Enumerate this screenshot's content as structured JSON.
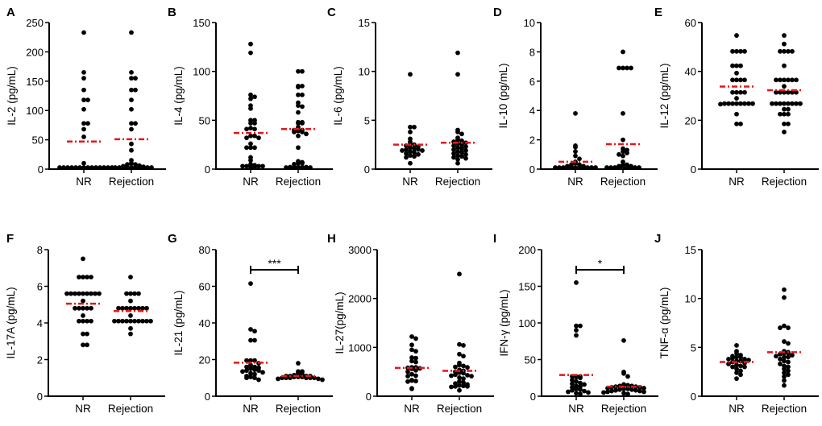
{
  "figure": {
    "colors": {
      "points": "#000000",
      "mean_line": "#e8141b",
      "axis": "#000000"
    }
  },
  "chart_data": [
    {
      "type": "scatter",
      "panel": "A",
      "ylabel": "IL-2 (pg/mL)",
      "categories": [
        "NR",
        "Rejection"
      ],
      "ylim": [
        0,
        250
      ],
      "yticks": [
        0,
        50,
        100,
        150,
        200,
        250
      ],
      "mean": [
        47,
        51
      ],
      "series": [
        {
          "name": "NR",
          "values": [
            233,
            165,
            155,
            135,
            118,
            118,
            102,
            78,
            78,
            68,
            55,
            10,
            2,
            1,
            1,
            0,
            0,
            0,
            0,
            0,
            0,
            0,
            0,
            0,
            0,
            0
          ]
        },
        {
          "name": "Rejection",
          "values": [
            233,
            165,
            155,
            155,
            135,
            135,
            118,
            102,
            78,
            78,
            68,
            43,
            32,
            15,
            10,
            8,
            8,
            6,
            5,
            4,
            3,
            2,
            2,
            1,
            1,
            0,
            0,
            0,
            0,
            0
          ]
        }
      ]
    },
    {
      "type": "scatter",
      "panel": "B",
      "ylabel": "IL-4 (pg/mL)",
      "categories": [
        "NR",
        "Rejection"
      ],
      "ylim": [
        0,
        150
      ],
      "yticks": [
        0,
        50,
        100,
        150
      ],
      "mean": [
        37,
        41
      ],
      "series": [
        {
          "name": "NR",
          "values": [
            128,
            119,
            76,
            74,
            72,
            65,
            62,
            50,
            50,
            47,
            47,
            42,
            41,
            41,
            34,
            34,
            32,
            32,
            26,
            22,
            22,
            22,
            12,
            9,
            5,
            4,
            3,
            3,
            3,
            3,
            2,
            1
          ]
        },
        {
          "name": "Rejection",
          "values": [
            100,
            100,
            85,
            85,
            84,
            76,
            76,
            68,
            65,
            64,
            58,
            48,
            48,
            47,
            47,
            43,
            40,
            40,
            39,
            38,
            38,
            36,
            34,
            22,
            8,
            7,
            6,
            6,
            5,
            2,
            2,
            2,
            2,
            2,
            1,
            0
          ]
        }
      ]
    },
    {
      "type": "scatter",
      "panel": "C",
      "ylabel": "IL-6 (pg/mL)",
      "categories": [
        "NR",
        "Rejection"
      ],
      "ylim": [
        0,
        15
      ],
      "yticks": [
        0,
        5,
        10,
        15
      ],
      "mean": [
        2.5,
        2.7
      ],
      "series": [
        {
          "name": "NR",
          "values": [
            9.7,
            4.3,
            4.3,
            3.8,
            3.1,
            2.8,
            2.6,
            2.5,
            2.4,
            2.3,
            2.2,
            2.1,
            2.0,
            2.0,
            1.9,
            1.9,
            1.8,
            1.7,
            1.6,
            1.5,
            1.4,
            1.3,
            1.2,
            0.6
          ]
        },
        {
          "name": "Rejection",
          "values": [
            11.9,
            9.7,
            4.0,
            3.8,
            3.6,
            3.2,
            3.0,
            2.9,
            2.8,
            2.7,
            2.6,
            2.5,
            2.4,
            2.3,
            2.2,
            2.1,
            2.0,
            1.9,
            1.8,
            1.7,
            1.6,
            1.5,
            1.4,
            1.3,
            1.2,
            1.1,
            1.0,
            0.6
          ]
        }
      ]
    },
    {
      "type": "scatter",
      "panel": "D",
      "ylabel": "IL-10 (pg/mL)",
      "categories": [
        "NR",
        "Rejection"
      ],
      "ylim": [
        0,
        10
      ],
      "yticks": [
        0,
        2,
        4,
        6,
        8,
        10
      ],
      "mean": [
        0.5,
        1.7
      ],
      "series": [
        {
          "name": "NR",
          "values": [
            3.8,
            1.6,
            1.5,
            1.2,
            0.9,
            0.7,
            0.5,
            0.4,
            0.3,
            0.3,
            0.2,
            0.2,
            0.1,
            0.1,
            0.1,
            0.0,
            0.0,
            0.0,
            0.0,
            0.0,
            0.0,
            0.0,
            0.0
          ]
        },
        {
          "name": "Rejection",
          "values": [
            8.0,
            6.9,
            6.9,
            6.9,
            6.9,
            3.8,
            2.0,
            1.4,
            1.3,
            1.2,
            1.1,
            1.0,
            0.9,
            0.5,
            0.3,
            0.3,
            0.2,
            0.2,
            0.1,
            0.1,
            0.0,
            0.0,
            0.0,
            0.0,
            0.0,
            0.0,
            0.0
          ]
        }
      ]
    },
    {
      "type": "scatter",
      "panel": "E",
      "ylabel": "IL-12 (pg/mL)",
      "categories": [
        "NR",
        "Rejection"
      ],
      "ylim": [
        0,
        60
      ],
      "yticks": [
        0,
        20,
        40,
        60
      ],
      "mean": [
        33.8,
        32.3
      ],
      "series": [
        {
          "name": "NR",
          "values": [
            54.7,
            48.2,
            48.2,
            48.2,
            48.2,
            42.3,
            42.3,
            42.3,
            39.3,
            36.5,
            36.5,
            36.5,
            36.5,
            31.4,
            31.4,
            31.4,
            31.4,
            29.0,
            26.8,
            26.8,
            26.8,
            26.8,
            26.8,
            26.8,
            26.8,
            26.8,
            26.6,
            22.5,
            18.5,
            18.5
          ]
        },
        {
          "name": "Rejection",
          "values": [
            54.7,
            51.2,
            48.2,
            48.2,
            48.2,
            48.2,
            42.3,
            36.5,
            36.5,
            36.5,
            36.5,
            36.5,
            36.5,
            33.9,
            31.4,
            31.4,
            31.4,
            31.4,
            31.4,
            31.4,
            26.8,
            26.8,
            26.8,
            26.8,
            26.8,
            26.8,
            26.8,
            26.8,
            24.5,
            24.5,
            22.5,
            22.5,
            22.5,
            18.5,
            18.5,
            15.2
          ]
        }
      ]
    },
    {
      "type": "scatter",
      "panel": "F",
      "ylabel": "IL-17A (pg/mL)",
      "categories": [
        "NR",
        "Rejection"
      ],
      "ylim": [
        0,
        8
      ],
      "yticks": [
        0,
        2,
        4,
        6,
        8
      ],
      "mean": [
        5.05,
        4.65
      ],
      "series": [
        {
          "name": "NR",
          "values": [
            7.5,
            6.5,
            6.5,
            6.5,
            6.5,
            5.6,
            5.6,
            5.6,
            5.6,
            5.6,
            5.6,
            5.6,
            5.6,
            5.6,
            5.2,
            4.8,
            4.8,
            4.8,
            4.8,
            4.8,
            4.4,
            4.1,
            4.1,
            4.1,
            4.1,
            3.4,
            3.4,
            2.8,
            2.8
          ]
        },
        {
          "name": "Rejection",
          "values": [
            6.5,
            5.6,
            5.6,
            5.6,
            5.6,
            5.2,
            4.8,
            4.8,
            4.8,
            4.8,
            4.8,
            4.8,
            4.8,
            4.8,
            4.4,
            4.1,
            4.1,
            4.1,
            4.1,
            4.1,
            4.1,
            4.1,
            4.1,
            4.1,
            4.1,
            3.7,
            3.4
          ]
        }
      ]
    },
    {
      "type": "scatter",
      "panel": "G",
      "ylabel": "IL-21 (pg/mL)",
      "categories": [
        "NR",
        "Rejection"
      ],
      "ylim": [
        0,
        80
      ],
      "yticks": [
        0,
        20,
        40,
        60,
        80
      ],
      "mean": [
        18.3,
        11.0
      ],
      "significance": "***",
      "series": [
        {
          "name": "NR",
          "values": [
            61.5,
            36.5,
            35.5,
            30.5,
            30.5,
            19.5,
            19.5,
            19.5,
            18,
            17,
            16,
            16,
            15.5,
            15,
            14.5,
            14,
            14,
            13.5,
            13,
            12.5,
            12,
            11,
            10.5,
            10,
            10,
            9
          ]
        },
        {
          "name": "Rejection",
          "values": [
            18,
            13.5,
            13.5,
            12.5,
            12,
            11.5,
            11,
            11,
            11,
            11,
            10.5,
            10.5,
            10.5,
            10,
            10,
            10,
            10,
            10,
            10,
            9.5,
            9.5,
            9
          ]
        }
      ]
    },
    {
      "type": "scatter",
      "panel": "H",
      "ylabel": "IL-27(pg/mL)",
      "categories": [
        "NR",
        "Rejection"
      ],
      "ylim": [
        0,
        3000
      ],
      "yticks": [
        0,
        1000,
        2000,
        3000
      ],
      "mean": [
        580,
        520
      ],
      "series": [
        {
          "name": "NR",
          "values": [
            1220,
            1180,
            1050,
            950,
            920,
            790,
            780,
            720,
            700,
            590,
            590,
            580,
            570,
            560,
            530,
            500,
            450,
            420,
            410,
            330,
            320,
            310,
            300,
            160,
            150
          ]
        },
        {
          "name": "Rejection",
          "values": [
            2500,
            1060,
            1040,
            860,
            820,
            680,
            640,
            620,
            600,
            590,
            540,
            520,
            500,
            480,
            470,
            440,
            430,
            420,
            410,
            380,
            360,
            300,
            280,
            260,
            240,
            220,
            210,
            200,
            200,
            190,
            120
          ]
        }
      ]
    },
    {
      "type": "scatter",
      "panel": "I",
      "ylabel": "IFN-γ (pg/mL)",
      "categories": [
        "NR",
        "Rejection"
      ],
      "ylim": [
        0,
        200
      ],
      "yticks": [
        0,
        50,
        100,
        150,
        200
      ],
      "mean": [
        29,
        13
      ],
      "significance": "*",
      "series": [
        {
          "name": "NR",
          "values": [
            155,
            96,
            96,
            90,
            83,
            27,
            27,
            27,
            26,
            25,
            22,
            20,
            18,
            17,
            16,
            14,
            13,
            12,
            10,
            9,
            8,
            7,
            6,
            5,
            4,
            3
          ]
        },
        {
          "name": "Rejection",
          "values": [
            76,
            33,
            31,
            27,
            16,
            15,
            15,
            14,
            14,
            13,
            13,
            12,
            12,
            11,
            11,
            10,
            10,
            9,
            9,
            8,
            8,
            7,
            7,
            6,
            6,
            5,
            4,
            3
          ]
        }
      ]
    },
    {
      "type": "scatter",
      "panel": "J",
      "ylabel": "TNF-α (pg/mL)",
      "categories": [
        "NR",
        "Rejection"
      ],
      "ylim": [
        0,
        15
      ],
      "yticks": [
        0,
        5,
        10,
        15
      ],
      "mean": [
        3.5,
        4.5
      ],
      "series": [
        {
          "name": "NR",
          "values": [
            5.2,
            4.6,
            4.4,
            4.2,
            4.1,
            4.0,
            4.0,
            3.9,
            3.8,
            3.8,
            3.7,
            3.6,
            3.6,
            3.5,
            3.4,
            3.3,
            3.2,
            3.1,
            3.0,
            3.0,
            2.8,
            2.6,
            2.4,
            2.2,
            1.8
          ]
        },
        {
          "name": "Rejection",
          "values": [
            10.9,
            10.1,
            7.2,
            7.0,
            7.0,
            5.6,
            5.4,
            4.6,
            4.5,
            4.4,
            4.4,
            4.3,
            4.2,
            4.1,
            4.0,
            4.0,
            3.8,
            3.6,
            3.5,
            3.3,
            3.1,
            3.0,
            2.8,
            2.6,
            2.4,
            2.2,
            2.0,
            1.6,
            1.1
          ]
        }
      ]
    }
  ]
}
